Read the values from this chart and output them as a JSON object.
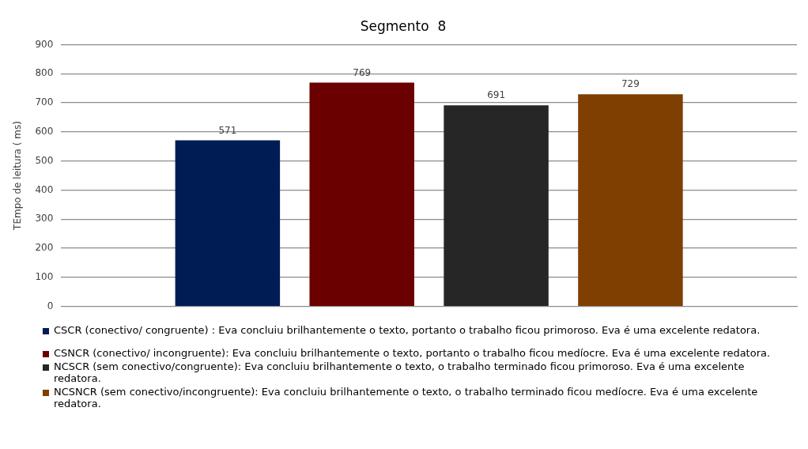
{
  "chart_data": {
    "type": "bar",
    "title": "Segmento  8",
    "ylabel": "TEmpo de leitura ( ms)",
    "categories": [
      null
    ],
    "series": [
      {
        "name": "CSCR (conectivo/ congruente) : Eva concluiu brilhantemente o texto, portanto o trabalho ficou primoroso. Eva é uma excelente redatora.",
        "color": "#001c54",
        "values": [
          571
        ]
      },
      {
        "name": "CSNCR (conectivo/ incongruente): Eva concluiu brilhantemente o texto, portanto o trabalho ficou medíocre. Eva é uma excelente redatora.",
        "color": "#6b0000",
        "values": [
          769
        ]
      },
      {
        "name": "NCSCR (sem conectivo/congruente): Eva concluiu brilhantemente o texto, o trabalho terminado ficou primoroso. Eva é uma excelente redatora.",
        "color": "#262626",
        "values": [
          691
        ]
      },
      {
        "name": "NCSNCR (sem conectivo/incongruente): Eva concluiu brilhantemente o texto, o trabalho terminado ficou medíocre. Eva é uma excelente redatora.",
        "color": "#7f3f00",
        "values": [
          729
        ]
      }
    ],
    "ylim": [
      0,
      900
    ],
    "yticks": [
      0,
      100,
      200,
      300,
      400,
      500,
      600,
      700,
      800,
      900
    ],
    "grid": "y",
    "data_labels": true,
    "legend": "bottom"
  }
}
